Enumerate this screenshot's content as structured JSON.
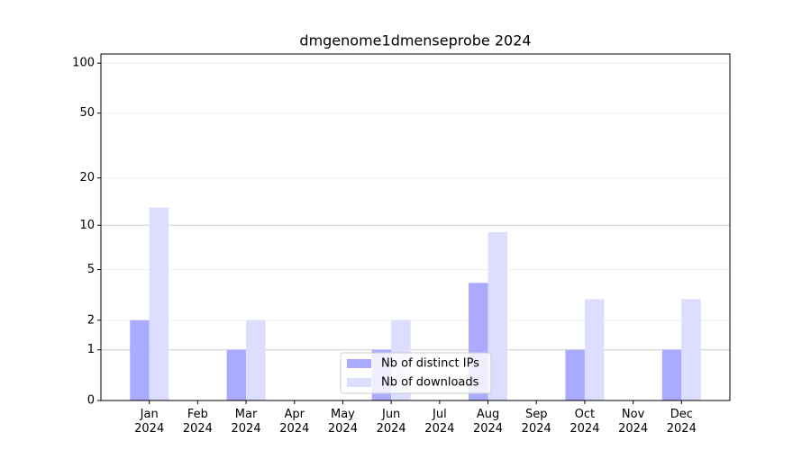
{
  "chart_data": {
    "type": "bar",
    "title": "dmgenome1dmenseprobe 2024",
    "categories": [
      "Jan\n2024",
      "Feb\n2024",
      "Mar\n2024",
      "Apr\n2024",
      "May\n2024",
      "Jun\n2024",
      "Jul\n2024",
      "Aug\n2024",
      "Sep\n2024",
      "Oct\n2024",
      "Nov\n2024",
      "Dec\n2024"
    ],
    "series": [
      {
        "name": "Nb of distinct IPs",
        "color": "#aaaaff",
        "values": [
          2,
          0,
          1,
          0,
          0,
          1,
          0,
          4,
          0,
          1,
          0,
          1
        ]
      },
      {
        "name": "Nb of downloads",
        "color": "#ddddff",
        "values": [
          13,
          0,
          2,
          0,
          0,
          2,
          0,
          9,
          0,
          3,
          0,
          3
        ]
      }
    ],
    "yscale": "symlog",
    "ylim": [
      0,
      113.5
    ],
    "yticks": [
      0,
      1,
      2,
      5,
      10,
      20,
      50,
      100
    ],
    "grid": true,
    "legend": "lower center"
  }
}
